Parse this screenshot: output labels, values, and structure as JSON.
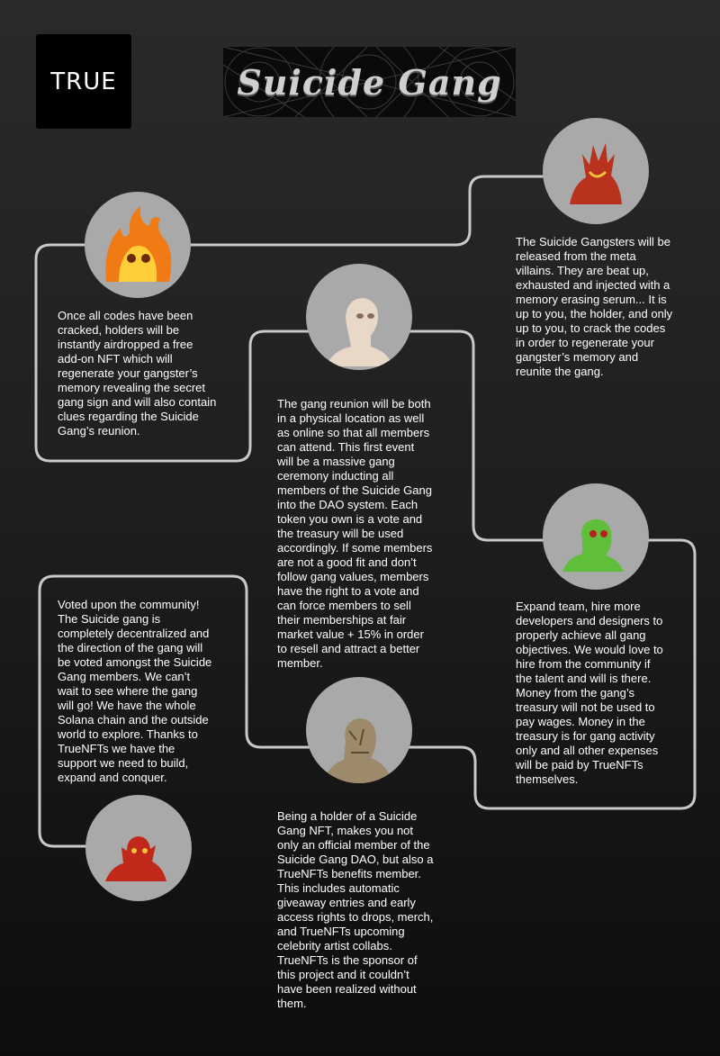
{
  "brand": {
    "logo_text": "TRUE",
    "banner_title": "Suicide Gang"
  },
  "colors": {
    "connector": "#c8c8c8",
    "circle": "#a9a9a9",
    "text": "#ffffff"
  },
  "roadmap": [
    {
      "avatar": "red-demon-head-icon",
      "text": "The Suicide Gangsters will be\nreleased from the meta\nvillains. They are beat up,\nexhausted and injected with a\nmemory erasing serum... It is\nup to you, the holder, and only\nup  to you, to crack the codes\nin order to regenerate your\ngangster’s memory and\nreunite the gang."
    },
    {
      "avatar": "flaming-skull-icon",
      "text": "Once all codes have been\ncracked, holders will be\ninstantly airdropped a free\nadd-on NFT which will\nregenerate your gangster’s\nmemory revealing the secret\ngang sign and will also contain\nclues regarding the Suicide\nGang’s reunion."
    },
    {
      "avatar": "pale-alien-head-icon",
      "text": "The gang reunion will be both\nin a physical location as well\nas online so that all members\ncan attend. This first event\nwill be a massive gang\nceremony inducting all\nmembers of the Suicide Gang\ninto the DAO system. Each\ntoken you own is a vote and\nthe treasury will be used\naccordingly. If some members\nare not a good fit and don’t\nfollow gang values, members\nhave the right to a vote and\ncan force members to sell\ntheir memberships at fair\nmarket value + 15% in order\nto resell and attract a better\nmember."
    },
    {
      "avatar": "green-alien-head-icon",
      "text": "Expand team, hire more\ndevelopers and designers to\nproperly achieve all gang\nobjectives. We would love to\nhire from the community if\nthe talent and will is there.\nMoney from the gang’s\ntreasury will not be used to\npay wages. Money in the\ntreasury is for gang activity\nonly and all other expenses\nwill be paid by TrueNFTs\nthemselves."
    },
    {
      "avatar": "rock-creature-head-icon",
      "text": "Being a holder of a Suicide\nGang NFT, makes you not\nonly an official member of the\nSuicide Gang DAO, but also a\nTrueNFTs benefits member.\nThis includes automatic\ngiveaway entries and early\naccess rights to drops,  merch,\nand TrueNFTs upcoming\ncelebrity artist collabs.\nTrueNFTs is the sponsor of\nthis project and it couldn’t\nhave been realized without\nthem."
    },
    {
      "avatar": "red-devil-head-icon",
      "text": "Voted upon the community!\nThe Suicide gang is\ncompletely decentralized and\nthe direction of the gang will\nbe voted amongst the Suicide\nGang members.  We can’t\nwait to see where the gang\nwill  go! We have the whole\nSolana chain and the outside\nworld to explore. Thanks to\nTrueNFTs we have the\nsupport we need to build,\nexpand and conquer."
    }
  ]
}
